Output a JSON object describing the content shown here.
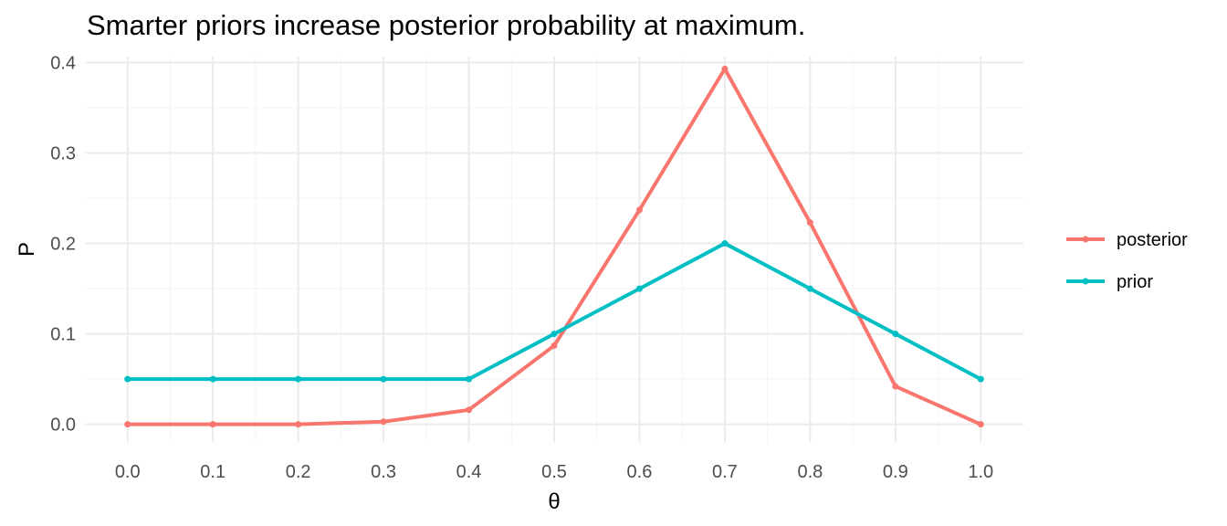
{
  "chart_data": {
    "type": "line",
    "title": "Smarter priors increase posterior probability at maximum.",
    "xlabel": "θ",
    "ylabel": "P",
    "x": [
      0.0,
      0.1,
      0.2,
      0.3,
      0.4,
      0.5,
      0.6,
      0.7,
      0.8,
      0.9,
      1.0
    ],
    "x_tick_labels": [
      "0.0",
      "0.1",
      "0.2",
      "0.3",
      "0.4",
      "0.5",
      "0.6",
      "0.7",
      "0.8",
      "0.9",
      "1.0"
    ],
    "y_tick_values": [
      0.0,
      0.1,
      0.2,
      0.3,
      0.4
    ],
    "y_tick_labels": [
      "0.0",
      "0.1",
      "0.2",
      "0.3",
      "0.4"
    ],
    "xlim": [
      -0.05,
      1.05
    ],
    "ylim": [
      -0.0195,
      0.4065
    ],
    "grid": true,
    "legend_position": "right",
    "series": [
      {
        "name": "posterior",
        "color": "#F8766D",
        "values": [
          0.0,
          0.0,
          0.0,
          0.003,
          0.016,
          0.087,
          0.237,
          0.393,
          0.223,
          0.042,
          0.0
        ]
      },
      {
        "name": "prior",
        "color": "#00BFC4",
        "values": [
          0.05,
          0.05,
          0.05,
          0.05,
          0.05,
          0.1,
          0.15,
          0.2,
          0.15,
          0.1,
          0.05
        ]
      }
    ]
  }
}
